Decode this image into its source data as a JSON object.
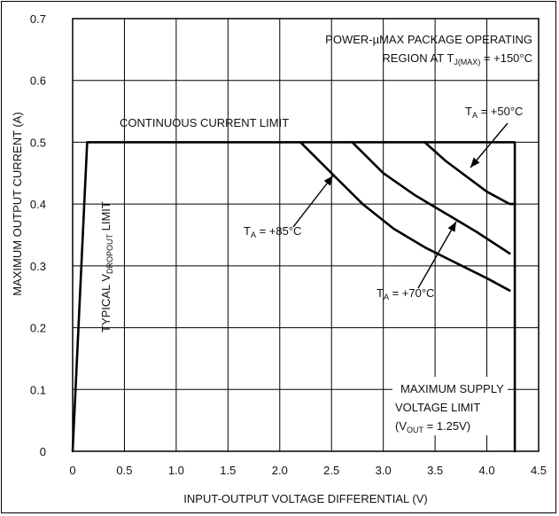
{
  "chart_data": {
    "type": "line",
    "title": "",
    "xlabel": "INPUT-OUTPUT VOLTAGE DIFFERENTIAL (V)",
    "ylabel": "MAXIMUM OUTPUT CURRENT (A)",
    "xlim": [
      0,
      4.5
    ],
    "ylim": [
      0,
      0.7
    ],
    "x_ticks": [
      "0",
      "0.5",
      "1.0",
      "1.5",
      "2.0",
      "2.5",
      "3.0",
      "3.5",
      "4.0",
      "4.5"
    ],
    "y_ticks": [
      "0",
      "0.1",
      "0.2",
      "0.3",
      "0.4",
      "0.5",
      "0.6",
      "0.7"
    ],
    "grid": true,
    "series": [
      {
        "name": "",
        "x": [
          0.0,
          0.14,
          4.27,
          4.27
        ],
        "y": [
          0.0,
          0.5,
          0.5,
          0.0
        ]
      },
      {
        "name": "",
        "x": [
          3.4,
          3.6,
          3.8,
          4.0,
          4.22,
          4.27
        ],
        "y": [
          0.5,
          0.47,
          0.445,
          0.42,
          0.4,
          0.4
        ]
      },
      {
        "name": "",
        "x": [
          2.7,
          3.0,
          3.3,
          3.6,
          3.9,
          4.22
        ],
        "y": [
          0.5,
          0.45,
          0.415,
          0.385,
          0.355,
          0.32
        ]
      },
      {
        "name": "",
        "x": [
          2.2,
          2.5,
          2.8,
          3.1,
          3.4,
          3.7,
          4.0,
          4.22
        ],
        "y": [
          0.5,
          0.45,
          0.4,
          0.36,
          0.33,
          0.305,
          0.28,
          0.26
        ]
      }
    ],
    "annotations": {
      "package_line1": "POWER-µMAX PACKAGE OPERATING",
      "package_line2_prefix": "REGION AT T",
      "package_line2_sub": "J(MAX)",
      "package_line2_suffix": " = +150°C",
      "continuous": "CONTINUOUS CURRENT LIMIT",
      "dropout_prefix": "TYPICAL V",
      "dropout_sub": "DROPOUT",
      "dropout_suffix": " LIMIT",
      "ta50_prefix": "T",
      "ta50_sub": "A",
      "ta50_suffix": " = +50°C",
      "ta85_prefix": "T",
      "ta85_sub": "A",
      "ta85_suffix": " = +85°C",
      "ta70_prefix": "T",
      "ta70_sub": "A",
      "ta70_suffix": " = +70°C",
      "supply_line1": "MAXIMUM SUPPLY",
      "supply_line2": "VOLTAGE LIMIT",
      "supply_line3_prefix": "(V",
      "supply_line3_sub": "OUT",
      "supply_line3_suffix": " = 1.25V)"
    }
  }
}
